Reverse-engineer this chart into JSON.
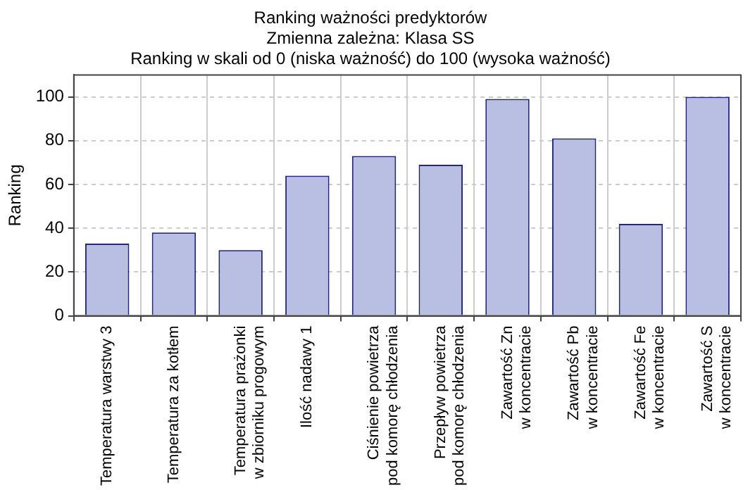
{
  "chart_data": {
    "type": "bar",
    "title": "Ranking ważności predyktorów",
    "subtitle": "Zmienna zależna: Klasa SS\nRanking w skali od 0 (niska ważność) do 100 (wysoka ważność)",
    "ylabel": "Ranking",
    "categories": [
      "Temperatura warstwy 3",
      "Temperatura za kotłem",
      "Temperatura prażonki\nw zbiorniku progowym",
      "Ilość nadawy 1",
      "Ciśnienie powietrza\npod komorę chłodzenia",
      "Przepływ powietrza\npod komorę chłodzenia",
      "Zawartość Zn\nw koncentracie",
      "Zawartość Pb\nw koncentracie",
      "Zawartość Fe\nw koncentracie",
      "Zawartość S\nw koncentracie"
    ],
    "values": [
      33,
      38,
      30,
      64,
      73,
      69,
      99,
      81,
      42,
      100
    ],
    "color": "#b9bee3",
    "ylim": [
      0,
      110
    ],
    "yticks": [
      0,
      20,
      40,
      60,
      80,
      100
    ],
    "grid": true
  }
}
